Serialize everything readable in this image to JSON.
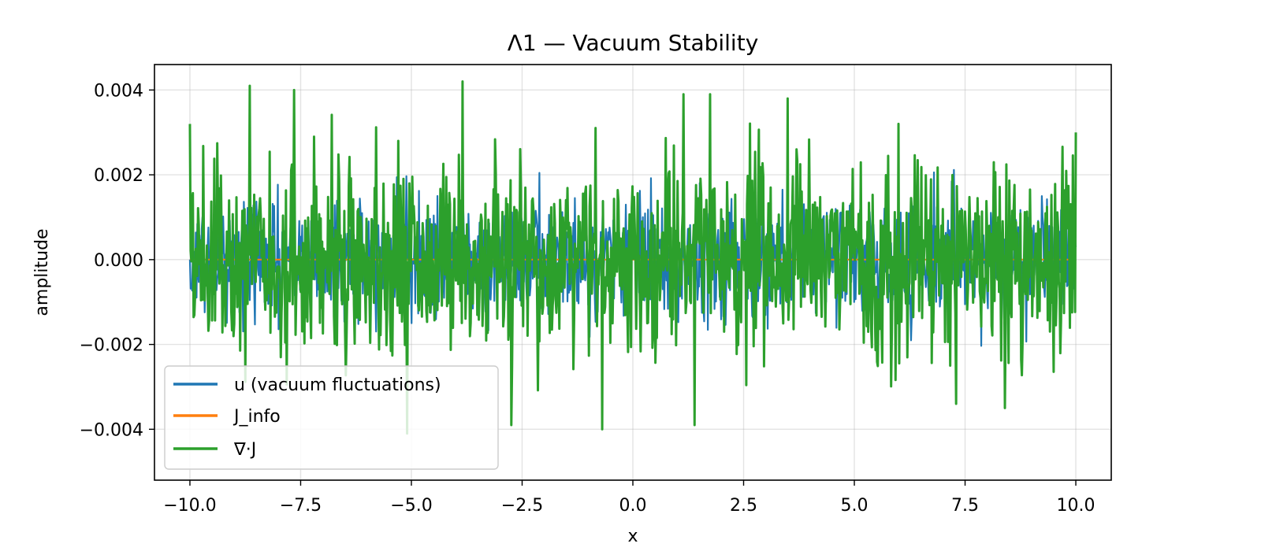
{
  "chart_data": {
    "type": "line",
    "title": "Λ1 — Vacuum Stability",
    "xlabel": "x",
    "ylabel": "amplitude",
    "xlim": [
      -10.8,
      10.8
    ],
    "ylim": [
      -0.0052,
      0.0046
    ],
    "x_ticks": [
      -10.0,
      -7.5,
      -5.0,
      -2.5,
      0.0,
      2.5,
      5.0,
      7.5,
      10.0
    ],
    "x_tick_labels": [
      "−10.0",
      "−7.5",
      "−5.0",
      "−2.5",
      "0.0",
      "2.5",
      "5.0",
      "7.5",
      "10.0"
    ],
    "y_ticks": [
      -0.004,
      -0.002,
      0.0,
      0.002,
      0.004
    ],
    "y_tick_labels": [
      "−0.004",
      "−0.002",
      "0.000",
      "0.002",
      "0.004"
    ],
    "grid": true,
    "legend_position": "lower-left",
    "series": [
      {
        "name": "u (vacuum fluctuations)",
        "color": "#1f77b4",
        "x": [
          -10.0,
          -5.0,
          0.0,
          5.0,
          10.0
        ],
        "values": [
          0.0,
          -0.0015,
          0.0008,
          -0.001,
          0.0003
        ]
      },
      {
        "name": "J_info",
        "color": "#ff7f0e",
        "x": [
          -10.0,
          10.0
        ],
        "values": [
          0.0,
          0.0
        ]
      },
      {
        "name": "∇·J",
        "color": "#2ca02c",
        "x": [
          -10.0,
          -8.65,
          -7.95,
          -7.65,
          -7.2,
          -5.3,
          -5.1,
          -3.85,
          -2.75,
          -0.7,
          1.15,
          1.4,
          1.75,
          3.5,
          6.0,
          7.3,
          8.4,
          10.0
        ],
        "values": [
          0.0032,
          0.0041,
          -0.0023,
          0.004,
          0.0029,
          0.0028,
          -0.0041,
          0.0042,
          -0.0039,
          -0.004,
          0.0039,
          -0.0039,
          0.0039,
          0.0038,
          0.0032,
          -0.0034,
          -0.0035,
          0.003
        ]
      }
    ]
  }
}
